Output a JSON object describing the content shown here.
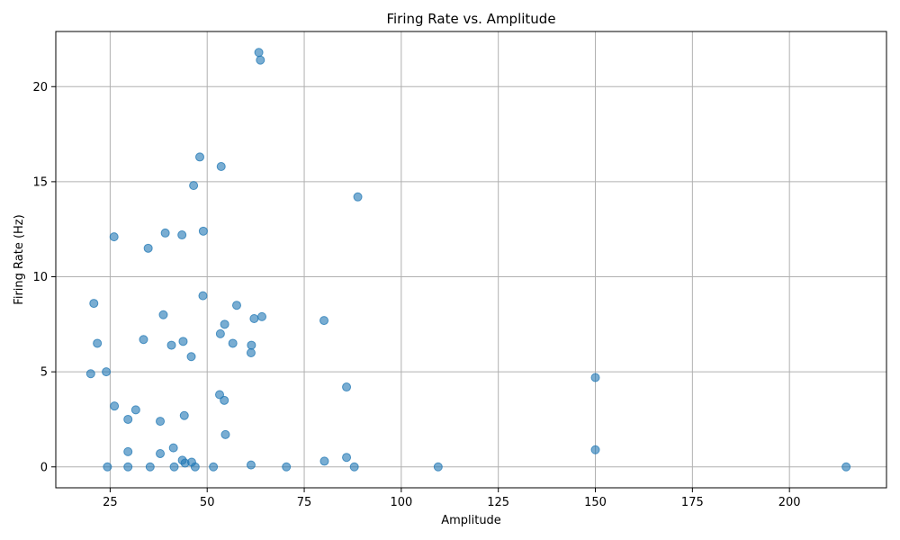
{
  "chart_data": {
    "type": "scatter",
    "title": "Firing Rate vs. Amplitude",
    "xlabel": "Amplitude",
    "ylabel": "Firing Rate (Hz)",
    "xlim": [
      11,
      225
    ],
    "ylim": [
      -1.1,
      22.9
    ],
    "xticks": [
      25,
      50,
      75,
      100,
      125,
      150,
      175,
      200
    ],
    "yticks": [
      0,
      5,
      10,
      15,
      20
    ],
    "grid": true,
    "marker_color": "#1f77b4",
    "marker_alpha": 0.6,
    "points": [
      [
        63.3,
        21.8
      ],
      [
        63.7,
        21.4
      ],
      [
        48.1,
        16.3
      ],
      [
        53.6,
        15.8
      ],
      [
        46.5,
        14.8
      ],
      [
        88.8,
        14.2
      ],
      [
        49.0,
        12.4
      ],
      [
        39.2,
        12.3
      ],
      [
        43.5,
        12.2
      ],
      [
        26.0,
        12.1
      ],
      [
        34.8,
        11.5
      ],
      [
        48.9,
        9.0
      ],
      [
        20.8,
        8.6
      ],
      [
        57.6,
        8.5
      ],
      [
        38.7,
        8.0
      ],
      [
        64.1,
        7.9
      ],
      [
        62.1,
        7.8
      ],
      [
        80.1,
        7.7
      ],
      [
        54.5,
        7.5
      ],
      [
        53.4,
        7.0
      ],
      [
        33.6,
        6.7
      ],
      [
        43.8,
        6.6
      ],
      [
        21.7,
        6.5
      ],
      [
        56.6,
        6.5
      ],
      [
        40.8,
        6.4
      ],
      [
        61.4,
        6.4
      ],
      [
        61.3,
        6.0
      ],
      [
        45.9,
        5.8
      ],
      [
        20.0,
        4.9
      ],
      [
        24.0,
        5.0
      ],
      [
        150.0,
        4.7
      ],
      [
        85.9,
        4.2
      ],
      [
        53.2,
        3.8
      ],
      [
        54.4,
        3.5
      ],
      [
        26.1,
        3.2
      ],
      [
        31.6,
        3.0
      ],
      [
        44.1,
        2.7
      ],
      [
        29.6,
        2.5
      ],
      [
        37.9,
        2.4
      ],
      [
        54.7,
        1.7
      ],
      [
        41.3,
        1.0
      ],
      [
        150.0,
        0.9
      ],
      [
        29.6,
        0.8
      ],
      [
        37.9,
        0.7
      ],
      [
        85.9,
        0.5
      ],
      [
        43.6,
        0.35
      ],
      [
        46.0,
        0.25
      ],
      [
        44.3,
        0.2
      ],
      [
        80.2,
        0.3
      ],
      [
        61.3,
        0.1
      ],
      [
        24.3,
        0.0
      ],
      [
        29.6,
        0.0
      ],
      [
        35.3,
        0.0
      ],
      [
        41.5,
        0.0
      ],
      [
        46.9,
        0.0
      ],
      [
        51.6,
        0.0
      ],
      [
        70.4,
        0.0
      ],
      [
        87.9,
        0.0
      ],
      [
        109.5,
        0.0
      ],
      [
        214.6,
        0.0
      ]
    ]
  }
}
